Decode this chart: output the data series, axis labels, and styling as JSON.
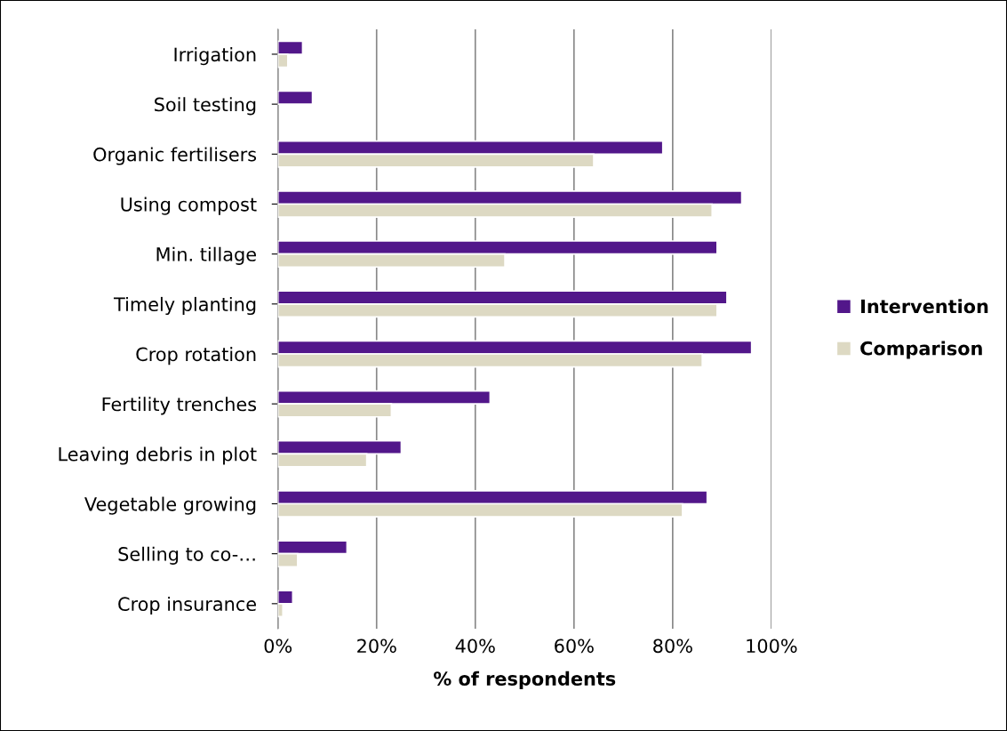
{
  "chart_data": {
    "type": "bar",
    "orientation": "horizontal",
    "xlabel": "% of respondents",
    "categories": [
      "Irrigation",
      "Soil testing",
      "Organic fertilisers",
      "Using compost",
      "Min. tillage",
      "Timely planting",
      "Crop rotation",
      "Fertility trenches",
      "Leaving debris in plot",
      "Vegetable growing",
      "Selling to co-…",
      "Crop insurance"
    ],
    "series": [
      {
        "name": "Intervention",
        "color": "#52178a",
        "values": [
          5,
          7,
          78,
          94,
          89,
          91,
          96,
          43,
          25,
          87,
          14,
          3
        ]
      },
      {
        "name": "Comparison",
        "color": "#ddd9c3",
        "values": [
          2,
          null,
          64,
          88,
          46,
          89,
          86,
          23,
          18,
          82,
          4,
          1
        ]
      }
    ],
    "xlim": [
      0,
      100
    ],
    "xticks": [
      {
        "value": 0,
        "label": "0%"
      },
      {
        "value": 20,
        "label": "20%"
      },
      {
        "value": 40,
        "label": "40%"
      },
      {
        "value": 60,
        "label": "60%"
      },
      {
        "value": 80,
        "label": "80%"
      },
      {
        "value": 100,
        "label": "100%"
      }
    ],
    "grid": "x",
    "legend": "right"
  }
}
